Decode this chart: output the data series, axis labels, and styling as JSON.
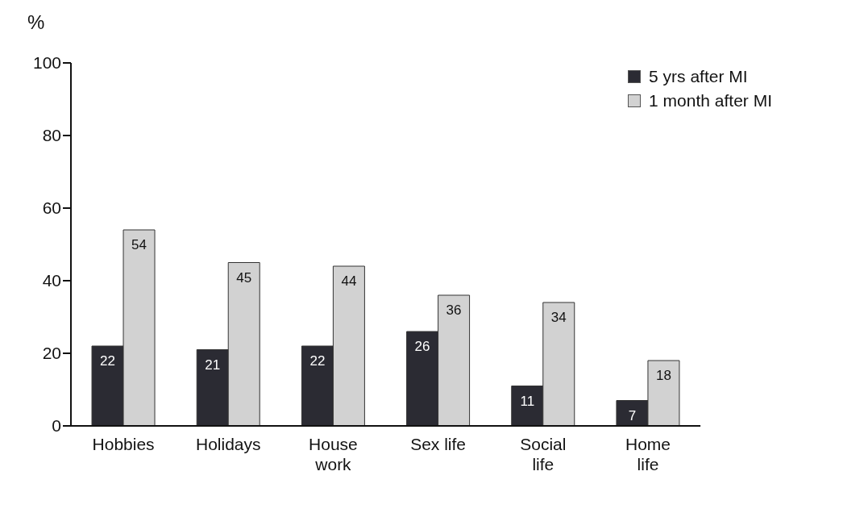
{
  "chart_data": {
    "type": "bar",
    "ylabel": "%",
    "categories": [
      "Hobbies",
      "Holidays",
      "House work",
      "Sex life",
      "Social life",
      "Home life"
    ],
    "series": [
      {
        "name": "5 yrs after MI",
        "color": "#2b2b33",
        "values": [
          22,
          21,
          22,
          26,
          11,
          7
        ]
      },
      {
        "name": "1 month after MI",
        "color": "#d2d2d2",
        "values": [
          54,
          45,
          44,
          36,
          34,
          18
        ]
      }
    ],
    "ylim": [
      0,
      100
    ],
    "yticks": [
      0,
      20,
      40,
      60,
      80,
      100
    ],
    "grid": false,
    "legend": "top right",
    "data_labels": true
  }
}
